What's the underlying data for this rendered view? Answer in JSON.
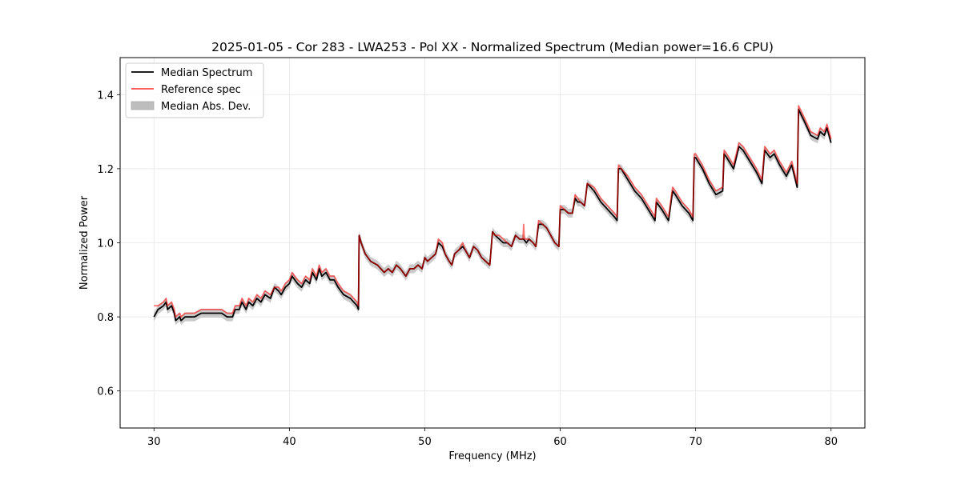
{
  "chart_data": {
    "type": "line",
    "title": "2025-01-05 - Cor 283 - LWA253 - Pol XX - Normalized Spectrum (Median power=16.6 CPU)",
    "xlabel": "Frequency (MHz)",
    "ylabel": "Normalized Power",
    "xlim": [
      27.5,
      82.5
    ],
    "ylim": [
      0.5,
      1.5
    ],
    "xticks": [
      30,
      40,
      50,
      60,
      70,
      80
    ],
    "yticks": [
      0.6,
      0.8,
      1.0,
      1.2,
      1.4
    ],
    "xtick_labels": [
      "30",
      "40",
      "50",
      "60",
      "70",
      "80"
    ],
    "ytick_labels": [
      "0.6",
      "0.8",
      "1.0",
      "1.2",
      "1.4"
    ],
    "grid": true,
    "legend_position": "top-left",
    "legend": [
      "Median Spectrum",
      "Reference spec",
      "Median Abs. Dev."
    ],
    "colors": {
      "median": "#000000",
      "reference": "#ff0000",
      "mad": "#bdbdbd",
      "grid": "#e6e6e6"
    },
    "series": [
      {
        "name": "Median Spectrum",
        "mad": 0.012,
        "x": [
          30.0,
          30.3,
          30.7,
          30.9,
          31.0,
          31.3,
          31.5,
          31.6,
          31.9,
          32.0,
          32.3,
          32.6,
          33.0,
          33.5,
          34.0,
          34.5,
          35.0,
          35.4,
          35.6,
          35.8,
          36.0,
          36.3,
          36.5,
          36.8,
          37.0,
          37.3,
          37.6,
          37.9,
          38.2,
          38.6,
          38.9,
          39.2,
          39.4,
          39.7,
          40.0,
          40.2,
          40.6,
          40.9,
          41.2,
          41.5,
          41.7,
          42.0,
          42.2,
          42.4,
          42.7,
          43.0,
          43.3,
          43.6,
          44.0,
          44.5,
          45.0,
          45.1,
          45.15,
          45.3,
          45.6,
          46.0,
          46.5,
          47.0,
          47.3,
          47.6,
          47.9,
          48.2,
          48.4,
          48.6,
          48.9,
          49.2,
          49.5,
          49.8,
          50.0,
          50.2,
          50.5,
          50.8,
          51.0,
          51.3,
          51.5,
          51.8,
          52.0,
          52.2,
          52.5,
          52.8,
          53.0,
          53.3,
          53.6,
          53.9,
          54.2,
          54.5,
          54.8,
          55.0,
          55.2,
          55.5,
          55.8,
          56.1,
          56.4,
          56.7,
          57.0,
          57.3,
          57.5,
          57.7,
          58.0,
          58.2,
          58.4,
          58.7,
          59.0,
          59.3,
          59.6,
          59.9,
          60.0,
          60.3,
          60.6,
          60.9,
          61.1,
          61.3,
          61.5,
          61.8,
          62.0,
          62.5,
          63.0,
          63.5,
          64.0,
          64.2,
          64.3,
          64.5,
          65.0,
          65.5,
          66.0,
          66.5,
          67.0,
          67.1,
          67.5,
          68.0,
          68.3,
          68.5,
          69.0,
          69.5,
          69.8,
          69.9,
          70.0,
          70.5,
          71.0,
          71.5,
          72.0,
          72.1,
          72.3,
          72.8,
          73.2,
          73.5,
          74.0,
          74.5,
          74.9,
          75.1,
          75.5,
          75.8,
          76.2,
          76.7,
          77.1,
          77.5,
          77.6,
          78.0,
          78.5,
          79.0,
          79.2,
          79.5,
          79.7,
          80.0
        ],
        "values": [
          0.8,
          0.82,
          0.83,
          0.84,
          0.82,
          0.83,
          0.81,
          0.79,
          0.8,
          0.79,
          0.8,
          0.8,
          0.8,
          0.81,
          0.81,
          0.81,
          0.81,
          0.8,
          0.8,
          0.8,
          0.82,
          0.82,
          0.84,
          0.82,
          0.84,
          0.83,
          0.85,
          0.84,
          0.86,
          0.85,
          0.88,
          0.87,
          0.86,
          0.88,
          0.89,
          0.91,
          0.89,
          0.88,
          0.9,
          0.89,
          0.92,
          0.9,
          0.93,
          0.91,
          0.92,
          0.9,
          0.9,
          0.88,
          0.86,
          0.85,
          0.83,
          0.82,
          1.02,
          1.0,
          0.97,
          0.95,
          0.94,
          0.92,
          0.93,
          0.92,
          0.94,
          0.93,
          0.92,
          0.91,
          0.93,
          0.93,
          0.94,
          0.93,
          0.96,
          0.95,
          0.96,
          0.97,
          1.0,
          0.99,
          0.97,
          0.95,
          0.94,
          0.97,
          0.98,
          0.99,
          0.98,
          0.96,
          0.99,
          0.98,
          0.96,
          0.95,
          0.94,
          1.03,
          1.02,
          1.01,
          1.0,
          1.0,
          0.99,
          1.02,
          1.01,
          1.01,
          1.0,
          1.01,
          1.0,
          0.99,
          1.05,
          1.05,
          1.04,
          1.02,
          1.0,
          0.99,
          1.09,
          1.09,
          1.08,
          1.08,
          1.12,
          1.11,
          1.11,
          1.1,
          1.16,
          1.14,
          1.11,
          1.09,
          1.07,
          1.06,
          1.2,
          1.2,
          1.17,
          1.14,
          1.12,
          1.09,
          1.06,
          1.11,
          1.09,
          1.06,
          1.14,
          1.13,
          1.1,
          1.08,
          1.06,
          1.23,
          1.23,
          1.2,
          1.16,
          1.13,
          1.14,
          1.24,
          1.23,
          1.2,
          1.26,
          1.25,
          1.22,
          1.19,
          1.16,
          1.25,
          1.23,
          1.24,
          1.21,
          1.18,
          1.21,
          1.15,
          1.36,
          1.33,
          1.29,
          1.28,
          1.3,
          1.29,
          1.31,
          1.27
        ]
      },
      {
        "name": "Reference spec",
        "x": [
          30.0,
          30.3,
          30.7,
          30.9,
          31.0,
          31.3,
          31.5,
          31.6,
          31.9,
          32.0,
          32.3,
          32.6,
          33.0,
          33.5,
          34.0,
          34.5,
          35.0,
          35.4,
          35.6,
          35.8,
          36.0,
          36.3,
          36.5,
          36.8,
          37.0,
          37.3,
          37.6,
          37.9,
          38.2,
          38.6,
          38.9,
          39.2,
          39.4,
          39.7,
          40.0,
          40.2,
          40.6,
          40.9,
          41.2,
          41.5,
          41.7,
          42.0,
          42.2,
          42.4,
          42.7,
          43.0,
          43.3,
          43.6,
          44.0,
          44.5,
          45.0,
          45.1,
          45.15,
          45.3,
          45.6,
          46.0,
          46.5,
          47.0,
          47.3,
          47.6,
          47.9,
          48.2,
          48.4,
          48.6,
          48.9,
          49.2,
          49.5,
          49.8,
          50.0,
          50.2,
          50.5,
          50.8,
          51.0,
          51.3,
          51.5,
          51.8,
          52.0,
          52.2,
          52.5,
          52.8,
          53.0,
          53.3,
          53.6,
          53.9,
          54.2,
          54.5,
          54.8,
          55.0,
          55.2,
          55.5,
          55.8,
          56.1,
          56.4,
          56.7,
          57.0,
          57.25,
          57.3,
          57.35,
          57.5,
          57.7,
          58.0,
          58.2,
          58.4,
          58.7,
          59.0,
          59.3,
          59.6,
          59.9,
          60.0,
          60.3,
          60.6,
          60.9,
          61.1,
          61.3,
          61.5,
          61.8,
          62.0,
          62.5,
          63.0,
          63.5,
          64.0,
          64.2,
          64.3,
          64.5,
          65.0,
          65.5,
          66.0,
          66.5,
          67.0,
          67.1,
          67.5,
          68.0,
          68.3,
          68.5,
          69.0,
          69.5,
          69.8,
          69.9,
          70.0,
          70.5,
          71.0,
          71.5,
          72.0,
          72.1,
          72.3,
          72.8,
          73.2,
          73.5,
          74.0,
          74.5,
          74.9,
          75.1,
          75.5,
          75.8,
          76.2,
          76.7,
          77.1,
          77.5,
          77.6,
          78.0,
          78.5,
          79.0,
          79.2,
          79.5,
          79.7,
          80.0
        ],
        "values": [
          0.83,
          0.83,
          0.84,
          0.85,
          0.83,
          0.84,
          0.82,
          0.8,
          0.81,
          0.8,
          0.81,
          0.81,
          0.81,
          0.82,
          0.82,
          0.82,
          0.82,
          0.81,
          0.81,
          0.81,
          0.83,
          0.83,
          0.85,
          0.83,
          0.85,
          0.84,
          0.86,
          0.85,
          0.87,
          0.86,
          0.88,
          0.88,
          0.87,
          0.89,
          0.9,
          0.92,
          0.9,
          0.89,
          0.91,
          0.9,
          0.93,
          0.91,
          0.94,
          0.92,
          0.93,
          0.91,
          0.91,
          0.89,
          0.87,
          0.86,
          0.84,
          0.83,
          1.02,
          1.0,
          0.97,
          0.95,
          0.94,
          0.92,
          0.93,
          0.92,
          0.94,
          0.93,
          0.92,
          0.91,
          0.93,
          0.93,
          0.94,
          0.93,
          0.96,
          0.95,
          0.96,
          0.97,
          1.01,
          1.0,
          0.97,
          0.95,
          0.94,
          0.97,
          0.98,
          1.0,
          0.98,
          0.96,
          0.99,
          0.98,
          0.96,
          0.95,
          0.94,
          1.03,
          1.02,
          1.02,
          1.01,
          1.0,
          0.99,
          1.02,
          1.01,
          1.01,
          1.05,
          1.01,
          1.01,
          1.01,
          1.0,
          0.99,
          1.06,
          1.05,
          1.04,
          1.02,
          1.0,
          0.99,
          1.1,
          1.09,
          1.08,
          1.08,
          1.13,
          1.12,
          1.11,
          1.1,
          1.16,
          1.15,
          1.12,
          1.1,
          1.08,
          1.07,
          1.21,
          1.2,
          1.18,
          1.15,
          1.13,
          1.1,
          1.07,
          1.12,
          1.1,
          1.07,
          1.15,
          1.14,
          1.11,
          1.09,
          1.07,
          1.24,
          1.24,
          1.21,
          1.17,
          1.14,
          1.15,
          1.25,
          1.24,
          1.21,
          1.27,
          1.26,
          1.23,
          1.2,
          1.17,
          1.26,
          1.24,
          1.25,
          1.22,
          1.19,
          1.22,
          1.16,
          1.37,
          1.34,
          1.3,
          1.29,
          1.31,
          1.3,
          1.32,
          1.28
        ]
      }
    ]
  }
}
